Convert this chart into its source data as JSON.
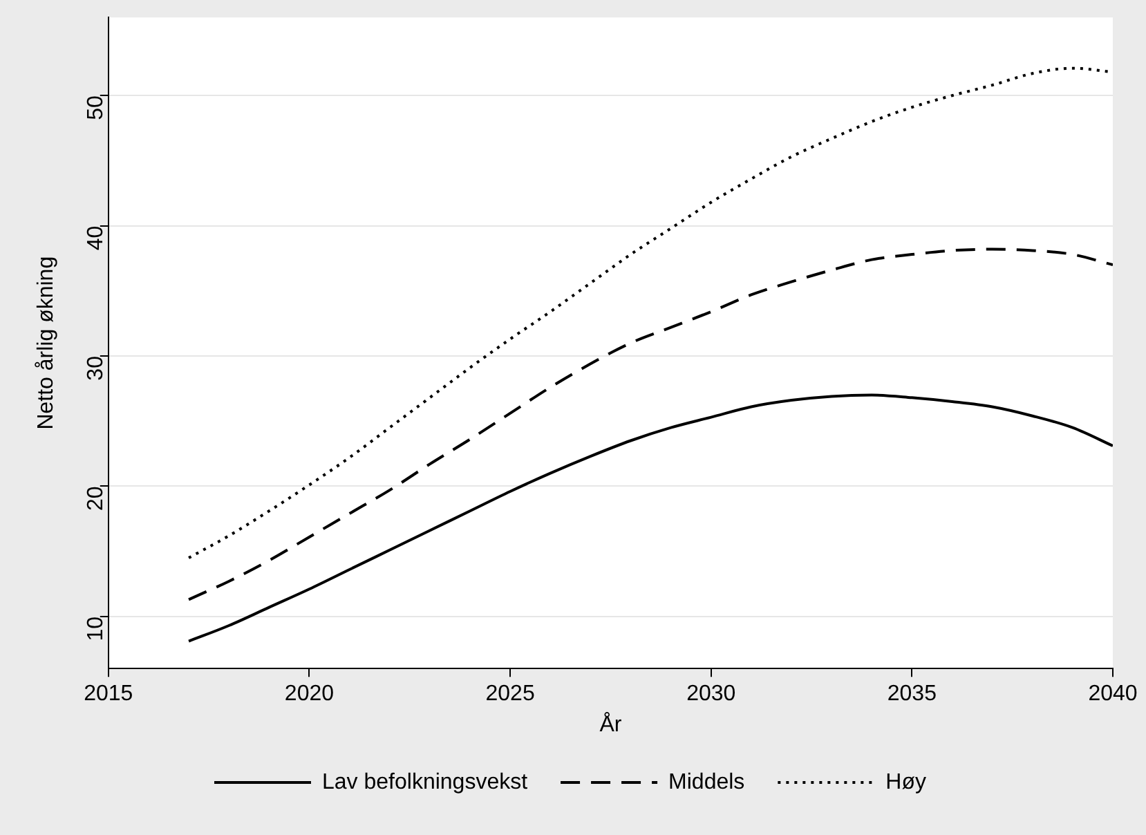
{
  "chart_data": {
    "type": "line",
    "xlabel": "År",
    "ylabel": "Netto årlig økning",
    "x": [
      2017,
      2018,
      2019,
      2020,
      2021,
      2022,
      2023,
      2024,
      2025,
      2026,
      2027,
      2028,
      2029,
      2030,
      2031,
      2032,
      2033,
      2034,
      2035,
      2036,
      2037,
      2038,
      2039,
      2040
    ],
    "series": [
      {
        "name": "Lav befolkningsvekst",
        "color": "#000000",
        "line_style": "solid",
        "values": [
          8.1,
          9.3,
          10.7,
          12.1,
          13.6,
          15.1,
          16.6,
          18.1,
          19.6,
          21.0,
          22.3,
          23.5,
          24.5,
          25.3,
          26.1,
          26.6,
          26.9,
          27.0,
          26.8,
          26.5,
          26.1,
          25.4,
          24.5,
          23.1
        ]
      },
      {
        "name": "Middels",
        "color": "#000000",
        "line_style": "dashed",
        "values": [
          11.3,
          12.7,
          14.3,
          16.1,
          17.9,
          19.7,
          21.7,
          23.6,
          25.6,
          27.6,
          29.4,
          31.0,
          32.2,
          33.4,
          34.7,
          35.7,
          36.6,
          37.4,
          37.8,
          38.1,
          38.2,
          38.1,
          37.8,
          37.0
        ]
      },
      {
        "name": "Høy",
        "color": "#000000",
        "line_style": "dotted",
        "values": [
          14.5,
          16.2,
          18.1,
          20.1,
          22.2,
          24.5,
          26.8,
          29.1,
          31.3,
          33.4,
          35.6,
          37.8,
          39.8,
          41.8,
          43.6,
          45.3,
          46.7,
          48.0,
          49.1,
          50.0,
          50.8,
          51.7,
          52.1,
          51.8
        ]
      }
    ],
    "xlim": [
      2015,
      2040
    ],
    "xticks": [
      2015,
      2020,
      2025,
      2030,
      2035,
      2040
    ],
    "ylim": [
      6,
      56
    ],
    "yticks": [
      10,
      20,
      30,
      40,
      50
    ],
    "grid": "y",
    "legend": "bottom",
    "marker": "none"
  }
}
